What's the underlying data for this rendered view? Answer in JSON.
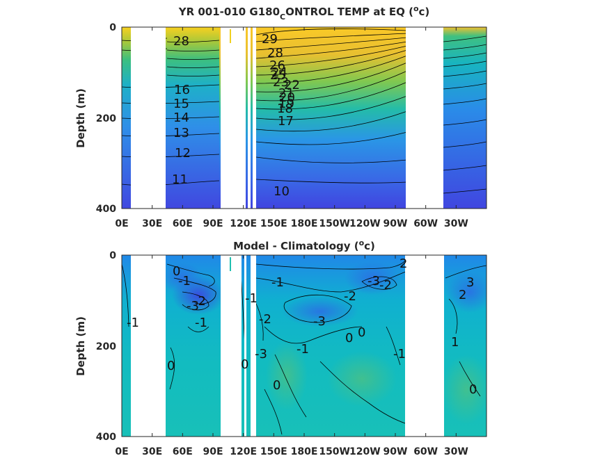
{
  "chart_data": [
    {
      "type": "heatmap",
      "title_parts": [
        "YR 001-010 G180",
        "C",
        "ONTROL TEMP at EQ (",
        "o",
        "c)"
      ],
      "ylabel": "Depth (m)",
      "xticks": [
        "0E",
        "30E",
        "60E",
        "90E",
        "120E",
        "150E",
        "180E",
        "150W",
        "120W",
        "90W",
        "60W",
        "30W"
      ],
      "yticks": [
        "0",
        "200",
        "400"
      ],
      "ylim": [
        0,
        400
      ],
      "colormap": [
        "#3e3ee0",
        "#3587f0",
        "#18b4c2",
        "#3cc080",
        "#a7c43a",
        "#f0bd38",
        "#f8e01a"
      ],
      "contour_labels": [
        "28",
        "29",
        "28",
        "26",
        "25",
        "24",
        "23",
        "22",
        "21",
        "20",
        "19",
        "18",
        "17",
        "16",
        "15",
        "14",
        "13",
        "12",
        "11",
        "10"
      ]
    },
    {
      "type": "heatmap",
      "title_parts": [
        "Model - Climatology (",
        "o",
        "c)"
      ],
      "ylabel": "Depth (m)",
      "xticks": [
        "0E",
        "30E",
        "60E",
        "90E",
        "120E",
        "150E",
        "180E",
        "150W",
        "120W",
        "90W",
        "60W",
        "30W"
      ],
      "yticks": [
        "0",
        "200",
        "400"
      ],
      "ylim": [
        0,
        400
      ],
      "colormap": [
        "#3050e0",
        "#2a8ae8",
        "#10b4c8",
        "#1ec0b0",
        "#40c090"
      ],
      "contour_labels": [
        "0",
        "-1",
        "-3",
        "-2",
        "-1",
        "-1",
        "0",
        "-2",
        "-3",
        "-1",
        "0",
        "-1",
        "-2",
        "-3",
        "-3",
        "-2",
        "2",
        "0",
        "-1",
        "0",
        "0",
        "3",
        "2",
        "-1",
        "1",
        "0"
      ]
    }
  ]
}
